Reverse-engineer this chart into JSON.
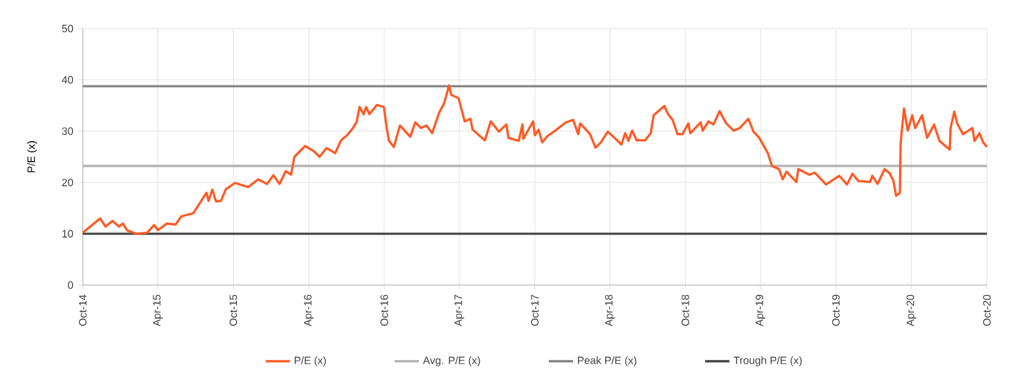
{
  "chart_data": {
    "type": "line",
    "ylabel": "P/E (x)",
    "x": [
      "2014-10-01",
      "2014-11-12",
      "2014-11-25",
      "2014-12-12",
      "2014-12-28",
      "2015-01-06",
      "2015-01-16",
      "2015-02-07",
      "2015-03-06",
      "2015-03-23",
      "2015-04-01",
      "2015-04-23",
      "2015-05-14",
      "2015-05-28",
      "2015-06-26",
      "2015-07-28",
      "2015-08-02",
      "2015-08-11",
      "2015-08-20",
      "2015-09-01",
      "2015-09-13",
      "2015-10-05",
      "2015-11-06",
      "2015-11-30",
      "2015-12-22",
      "2016-01-06",
      "2016-01-21",
      "2016-02-05",
      "2016-02-18",
      "2016-02-26",
      "2016-03-23",
      "2016-04-13",
      "2016-04-27",
      "2016-05-14",
      "2016-06-04",
      "2016-06-18",
      "2016-07-03",
      "2016-07-17",
      "2016-07-26",
      "2016-08-02",
      "2016-08-12",
      "2016-08-18",
      "2016-08-26",
      "2016-09-13",
      "2016-09-30",
      "2016-10-07",
      "2016-10-12",
      "2016-10-24",
      "2016-11-08",
      "2016-12-03",
      "2016-12-15",
      "2016-12-29",
      "2017-01-11",
      "2017-01-25",
      "2017-02-11",
      "2017-02-23",
      "2017-03-07",
      "2017-03-12",
      "2017-03-30",
      "2017-04-14",
      "2017-04-28",
      "2017-05-03",
      "2017-06-02",
      "2017-06-16",
      "2017-07-06",
      "2017-07-24",
      "2017-07-29",
      "2017-08-23",
      "2017-09-01",
      "2017-09-03",
      "2017-09-27",
      "2017-10-01",
      "2017-10-10",
      "2017-10-19",
      "2017-10-31",
      "2017-11-23",
      "2017-12-15",
      "2018-01-02",
      "2018-01-14",
      "2018-01-19",
      "2018-02-12",
      "2018-02-25",
      "2018-03-10",
      "2018-03-27",
      "2018-04-12",
      "2018-04-29",
      "2018-05-08",
      "2018-05-16",
      "2018-05-25",
      "2018-06-05",
      "2018-06-25",
      "2018-07-09",
      "2018-07-16",
      "2018-08-11",
      "2018-08-20",
      "2018-08-31",
      "2018-09-12",
      "2018-09-24",
      "2018-10-08",
      "2018-10-13",
      "2018-11-07",
      "2018-11-12",
      "2018-11-26",
      "2018-12-08",
      "2018-12-23",
      "2019-01-08",
      "2019-01-26",
      "2019-02-10",
      "2019-02-20",
      "2019-03-03",
      "2019-03-15",
      "2019-03-29",
      "2019-04-19",
      "2019-04-29",
      "2019-05-16",
      "2019-05-25",
      "2019-06-03",
      "2019-06-27",
      "2019-07-02",
      "2019-07-28",
      "2019-08-11",
      "2019-09-07",
      "2019-10-09",
      "2019-10-28",
      "2019-11-10",
      "2019-11-24",
      "2019-12-23",
      "2019-12-28",
      "2020-01-10",
      "2020-01-27",
      "2020-02-08",
      "2020-02-17",
      "2020-02-24",
      "2020-03-04",
      "2020-03-06",
      "2020-03-14",
      "2020-03-23",
      "2020-04-03",
      "2020-04-10",
      "2020-04-27",
      "2020-05-09",
      "2020-05-26",
      "2020-06-08",
      "2020-07-03",
      "2020-07-05",
      "2020-07-14",
      "2020-07-21",
      "2020-08-04",
      "2020-08-27",
      "2020-09-01",
      "2020-09-13",
      "2020-09-22",
      "2020-10-01"
    ],
    "series": [
      {
        "name": "P/E (x)",
        "color": "#ff5a24",
        "values": [
          10.2,
          13.0,
          11.4,
          12.5,
          11.4,
          12.0,
          10.7,
          10.0,
          10.2,
          11.7,
          10.7,
          12.0,
          11.8,
          13.4,
          14.0,
          18.0,
          16.4,
          18.6,
          16.3,
          16.4,
          18.7,
          19.9,
          19.1,
          20.6,
          19.7,
          21.4,
          19.7,
          22.2,
          21.5,
          25.0,
          27.1,
          26.1,
          25.0,
          26.7,
          25.7,
          28.2,
          29.2,
          30.6,
          31.8,
          34.7,
          33.3,
          34.7,
          33.3,
          35.1,
          34.7,
          30.6,
          28.2,
          26.9,
          31.1,
          28.9,
          31.7,
          30.6,
          31.1,
          29.6,
          33.6,
          35.4,
          38.9,
          37.1,
          36.4,
          31.9,
          32.4,
          30.3,
          28.2,
          31.9,
          29.9,
          31.3,
          28.7,
          28.1,
          31.3,
          28.5,
          31.9,
          29.2,
          30.3,
          27.8,
          29.0,
          30.3,
          31.7,
          32.2,
          29.4,
          31.5,
          29.4,
          26.8,
          27.8,
          29.9,
          28.7,
          27.4,
          29.6,
          28.1,
          30.1,
          28.2,
          28.2,
          29.6,
          33.1,
          34.9,
          33.3,
          32.2,
          29.4,
          29.4,
          31.5,
          29.6,
          31.7,
          30.1,
          31.9,
          31.3,
          33.9,
          31.5,
          30.1,
          30.6,
          31.5,
          32.4,
          29.9,
          28.7,
          25.7,
          23.2,
          22.6,
          20.6,
          22.1,
          20.1,
          22.6,
          21.5,
          21.9,
          19.6,
          21.3,
          19.6,
          21.7,
          20.3,
          20.1,
          21.3,
          19.7,
          22.6,
          21.8,
          20.4,
          17.4,
          18.0,
          27.8,
          34.4,
          30.1,
          33.1,
          30.6,
          33.1,
          28.7,
          31.3,
          28.1,
          26.4,
          30.6,
          33.8,
          31.5,
          29.4,
          30.6,
          28.1,
          29.6,
          27.8,
          26.9
        ]
      }
    ],
    "ref_lines": [
      {
        "axis": "y",
        "value": 23.2,
        "label": "Avg. P/E (x)",
        "color": "#b2b2b2"
      },
      {
        "axis": "y",
        "value": 38.75,
        "label": "Peak P/E (x)",
        "color": "#808080"
      },
      {
        "axis": "y",
        "value": 10.0,
        "label": "Trough P/E (x)",
        "color": "#404040"
      }
    ],
    "xlim": [
      "2014-10-01",
      "2020-10-01"
    ],
    "xticks": [
      {
        "value": "2014-10-01",
        "label": "Oct-14"
      },
      {
        "value": "2015-04-01",
        "label": "Apr-15"
      },
      {
        "value": "2015-10-01",
        "label": "Oct-15"
      },
      {
        "value": "2016-04-01",
        "label": "Apr-16"
      },
      {
        "value": "2016-10-01",
        "label": "Oct-16"
      },
      {
        "value": "2017-04-01",
        "label": "Apr-17"
      },
      {
        "value": "2017-10-01",
        "label": "Oct-17"
      },
      {
        "value": "2018-04-01",
        "label": "Apr-18"
      },
      {
        "value": "2018-10-01",
        "label": "Oct-18"
      },
      {
        "value": "2019-04-01",
        "label": "Apr-19"
      },
      {
        "value": "2019-10-01",
        "label": "Oct-19"
      },
      {
        "value": "2020-04-01",
        "label": "Apr-20"
      },
      {
        "value": "2020-10-01",
        "label": "Oct-20"
      }
    ],
    "ylim": [
      0,
      50
    ],
    "yticks": [
      0,
      10,
      20,
      30,
      40,
      50
    ],
    "grid": true,
    "legend": "bottom"
  }
}
